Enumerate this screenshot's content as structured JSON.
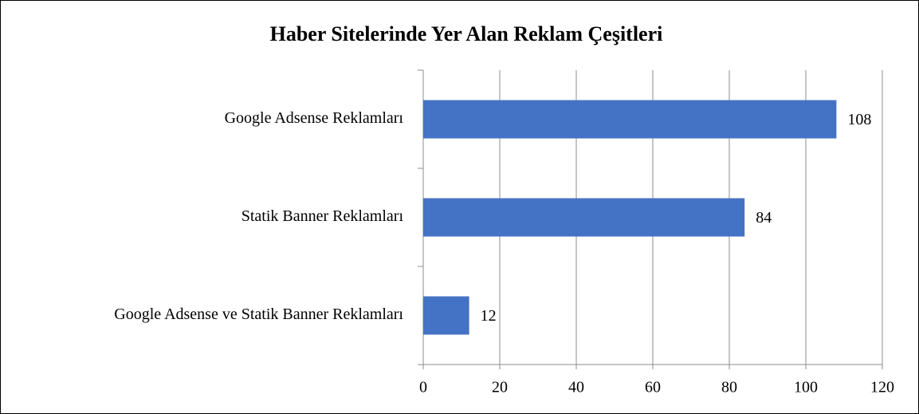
{
  "chart_data": {
    "type": "bar",
    "orientation": "horizontal",
    "title": "Haber Sitelerinde Yer Alan Reklam Çeşitleri",
    "categories": [
      "Google Adsense Reklamları",
      "Statik Banner Reklamları",
      "Google Adsense ve Statik Banner Reklamları"
    ],
    "values": [
      108,
      84,
      12
    ],
    "color": "#4472c4",
    "xlim": [
      0,
      120
    ],
    "xticks": [
      0,
      20,
      40,
      60,
      80,
      100,
      120
    ],
    "grid": true
  }
}
